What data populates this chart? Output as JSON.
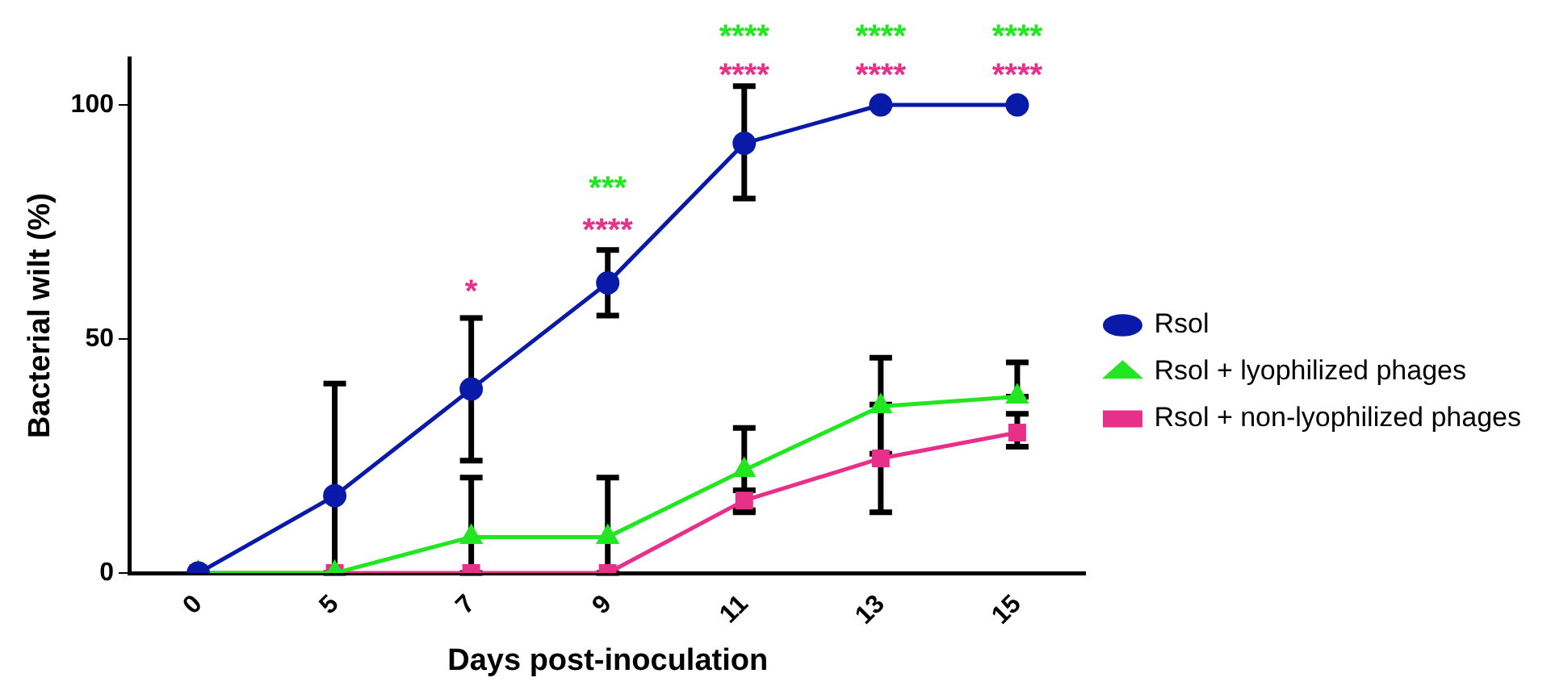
{
  "chart_data": {
    "type": "line",
    "xlabel": "Days post-inoculation",
    "ylabel": "Bacterial wilt (%)",
    "categories": [
      "0",
      "5",
      "7",
      "9",
      "11",
      "13",
      "15"
    ],
    "ylim": [
      0,
      110
    ],
    "yticks": [
      0,
      50,
      100
    ],
    "grid": false,
    "legend": "right",
    "series": [
      {
        "name": "Rsol",
        "color": "#0a1aa8",
        "marker": "circle",
        "values": [
          0,
          16.5,
          39.3,
          62,
          91.8,
          100,
          100
        ],
        "errors": [
          null,
          [
            0,
            40.5
          ],
          [
            24,
            54.5
          ],
          [
            55,
            69
          ],
          [
            80,
            104
          ],
          null,
          null
        ]
      },
      {
        "name": "Rsol + lyophilized phages",
        "color": "#22e622",
        "marker": "triangle",
        "values": [
          0,
          0,
          7.7,
          7.7,
          22,
          35.6,
          37.7
        ],
        "errors": [
          null,
          null,
          [
            0,
            20.4
          ],
          [
            0,
            20.4
          ],
          [
            13,
            31
          ],
          [
            25.5,
            46
          ],
          [
            37.7,
            45
          ]
        ]
      },
      {
        "name": "Rsol + non-lyophilized phages",
        "color": "#e6308a",
        "marker": "square",
        "values": [
          0,
          0,
          0,
          0,
          15.5,
          24.5,
          30
        ],
        "errors": [
          null,
          null,
          null,
          null,
          [
            13.4,
            17.7
          ],
          [
            13,
            36
          ],
          [
            27,
            34
          ]
        ]
      }
    ],
    "annotations": [
      "*",
      "***",
      "****",
      "****",
      "****",
      "****",
      "****",
      "****",
      "****"
    ]
  }
}
